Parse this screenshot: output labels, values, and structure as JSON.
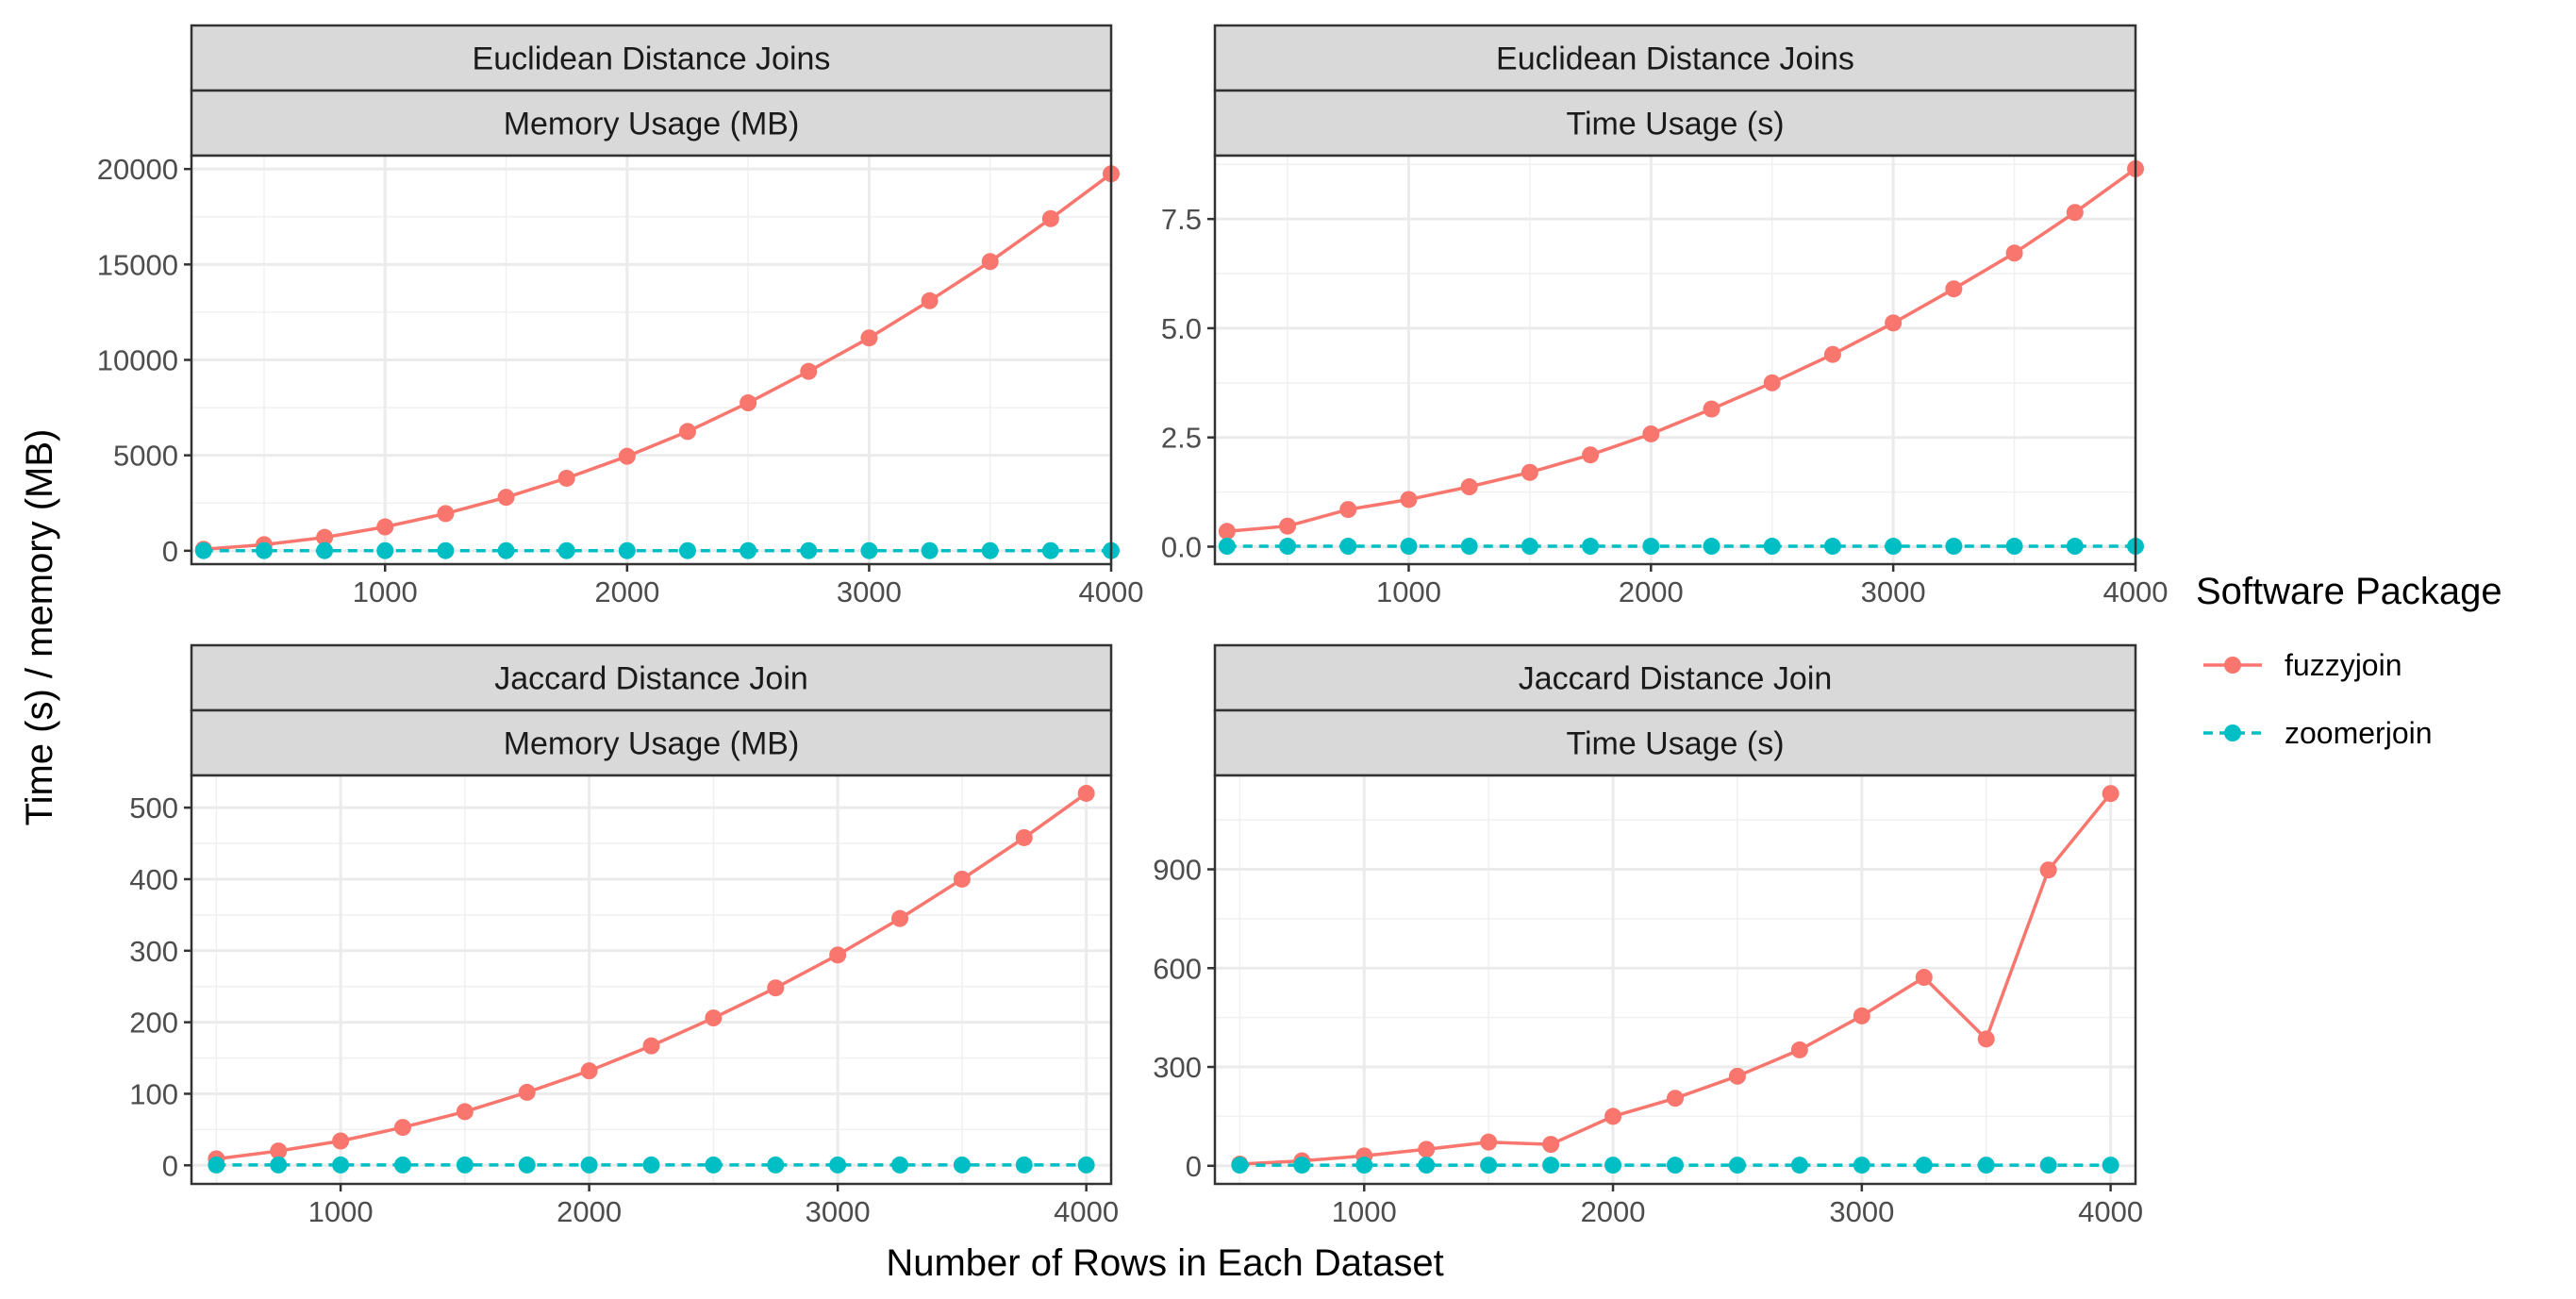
{
  "chart_data": {
    "type": "line",
    "xlabel": "Number of Rows in Each Dataset",
    "ylabel": "Time (s) / memory (MB)",
    "legend": {
      "title": "Software Package",
      "position": "right",
      "entries": [
        {
          "name": "fuzzyjoin",
          "color": "#F8766D",
          "linetype": "solid"
        },
        {
          "name": "zoomerjoin",
          "color": "#00BFC4",
          "linetype": "dashed"
        }
      ]
    },
    "grid": true,
    "panels": [
      {
        "strip_top": "Euclidean Distance Joins",
        "strip_bottom": "Memory Usage (MB)",
        "xlim": [
          200,
          4000
        ],
        "ylim": [
          -700,
          20700
        ],
        "xticks": [
          1000,
          2000,
          3000,
          4000
        ],
        "yticks": [
          0,
          5000,
          10000,
          15000,
          20000
        ],
        "x": [
          250,
          500,
          750,
          1000,
          1250,
          1500,
          1750,
          2000,
          2250,
          2500,
          2750,
          3000,
          3250,
          3500,
          3750,
          4000
        ],
        "series": [
          {
            "name": "fuzzyjoin",
            "values": [
              80,
              320,
              700,
              1250,
              1950,
              2800,
              3800,
              4950,
              6250,
              7750,
              9400,
              11150,
              13100,
              15150,
              17400,
              19750
            ]
          },
          {
            "name": "zoomerjoin",
            "values": [
              5,
              5,
              5,
              5,
              5,
              5,
              5,
              5,
              5,
              5,
              5,
              5,
              5,
              5,
              5,
              5
            ]
          }
        ]
      },
      {
        "strip_top": "Euclidean Distance Joins",
        "strip_bottom": "Time Usage (s)",
        "xlim": [
          200,
          4000
        ],
        "ylim": [
          -0.4,
          8.95
        ],
        "xticks": [
          1000,
          2000,
          3000,
          4000
        ],
        "yticks": [
          0,
          2.5,
          5,
          7.5
        ],
        "ytick_labels": [
          "0.0",
          "2.5",
          "5.0",
          "7.5"
        ],
        "x": [
          250,
          500,
          750,
          1000,
          1250,
          1500,
          1750,
          2000,
          2250,
          2500,
          2750,
          3000,
          3250,
          3500,
          3750,
          4000
        ],
        "series": [
          {
            "name": "fuzzyjoin",
            "values": [
              0.35,
              0.47,
              0.85,
              1.08,
              1.37,
              1.7,
              2.1,
              2.58,
              3.15,
              3.75,
              4.4,
              5.12,
              5.9,
              6.72,
              7.65,
              8.65
            ]
          },
          {
            "name": "zoomerjoin",
            "values": [
              0.01,
              0.01,
              0.01,
              0.01,
              0.01,
              0.01,
              0.01,
              0.01,
              0.01,
              0.01,
              0.01,
              0.01,
              0.01,
              0.01,
              0.01,
              0.01
            ]
          }
        ]
      },
      {
        "strip_top": "Jaccard Distance Join",
        "strip_bottom": "Memory Usage (MB)",
        "xlim": [
          400,
          4100
        ],
        "ylim": [
          -26,
          545
        ],
        "xticks": [
          1000,
          2000,
          3000,
          4000
        ],
        "yticks": [
          0,
          100,
          200,
          300,
          400,
          500
        ],
        "x": [
          500,
          750,
          1000,
          1250,
          1500,
          1750,
          2000,
          2250,
          2500,
          2750,
          3000,
          3250,
          3500,
          3750,
          4000
        ],
        "series": [
          {
            "name": "fuzzyjoin",
            "values": [
              9,
              20,
              34,
              53,
              75,
              102,
              132,
              167,
              206,
              248,
              294,
              345,
              400,
              458,
              520
            ]
          },
          {
            "name": "zoomerjoin",
            "values": [
              0.5,
              0.5,
              0.5,
              0.5,
              0.5,
              0.5,
              0.5,
              0.5,
              0.5,
              0.5,
              0.5,
              0.5,
              0.5,
              0.5,
              0.5
            ]
          }
        ]
      },
      {
        "strip_top": "Jaccard Distance Join",
        "strip_bottom": "Time Usage (s)",
        "xlim": [
          400,
          4100
        ],
        "ylim": [
          -55,
          1185
        ],
        "xticks": [
          1000,
          2000,
          3000,
          4000
        ],
        "yticks": [
          0,
          300,
          600,
          900
        ],
        "x": [
          500,
          750,
          1000,
          1250,
          1500,
          1750,
          2000,
          2250,
          2500,
          2750,
          3000,
          3250,
          3500,
          3750,
          4000
        ],
        "series": [
          {
            "name": "fuzzyjoin",
            "values": [
              5,
              15,
              30,
              50,
              72,
              65,
              150,
              205,
              272,
              352,
              455,
              572,
              385,
              898,
              1130
            ]
          },
          {
            "name": "zoomerjoin",
            "values": [
              2,
              2,
              2,
              2,
              2,
              2,
              2,
              2,
              2,
              2,
              2,
              2,
              2,
              2,
              2
            ]
          }
        ]
      }
    ]
  }
}
